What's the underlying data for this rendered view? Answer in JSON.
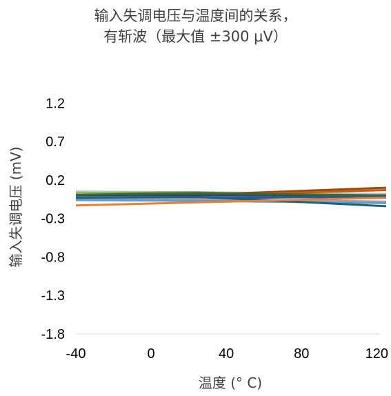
{
  "chart_data": {
    "type": "line",
    "title": [
      "输入失调电压与温度间的关系，",
      "有斩波（最大值 ±300 μV）"
    ],
    "xlabel": "温度 (° C)",
    "ylabel": "输入失调电压 (mV)",
    "xlim": [
      -40,
      125
    ],
    "ylim": [
      -1.8,
      1.5
    ],
    "xticks": [
      -40,
      0,
      40,
      80,
      120
    ],
    "yticks": [
      1.2,
      0.7,
      0.2,
      -0.3,
      -0.8,
      -1.3,
      -1.8
    ],
    "ytick_labels": [
      "1.2",
      "0.7",
      "0.2",
      "-0.3",
      "-0.8",
      "-1.3",
      "-1.8"
    ],
    "grid": false,
    "x": [
      -40,
      25,
      125
    ],
    "series": [
      {
        "color": "#C0C0C0",
        "values": [
          0.05,
          0.04,
          0.02
        ]
      },
      {
        "color": "#70AD47",
        "values": [
          0.03,
          0.04,
          -0.02
        ]
      },
      {
        "color": "#A9D18E",
        "values": [
          0.02,
          0.02,
          0.0
        ]
      },
      {
        "color": "#9E480E",
        "values": [
          0.0,
          0.01,
          0.1
        ]
      },
      {
        "color": "#C55A11",
        "values": [
          -0.02,
          0.0,
          0.07
        ]
      },
      {
        "color": "#264478",
        "values": [
          -0.01,
          0.0,
          0.0
        ]
      },
      {
        "color": "#4472C4",
        "values": [
          -0.02,
          -0.02,
          -0.03
        ]
      },
      {
        "color": "#43682B",
        "values": [
          0.01,
          0.03,
          0.0
        ]
      },
      {
        "color": "#255E91",
        "values": [
          -0.05,
          -0.04,
          -0.01
        ]
      },
      {
        "color": "#A5A5A5",
        "values": [
          -0.04,
          -0.05,
          -0.08
        ]
      },
      {
        "color": "#5B9BD5",
        "values": [
          -0.06,
          -0.07,
          -0.1
        ]
      },
      {
        "color": "#1F5F78",
        "values": [
          -0.03,
          -0.02,
          -0.14
        ]
      },
      {
        "color": "#ED7D31",
        "values": [
          -0.13,
          -0.09,
          -0.03
        ]
      }
    ]
  }
}
